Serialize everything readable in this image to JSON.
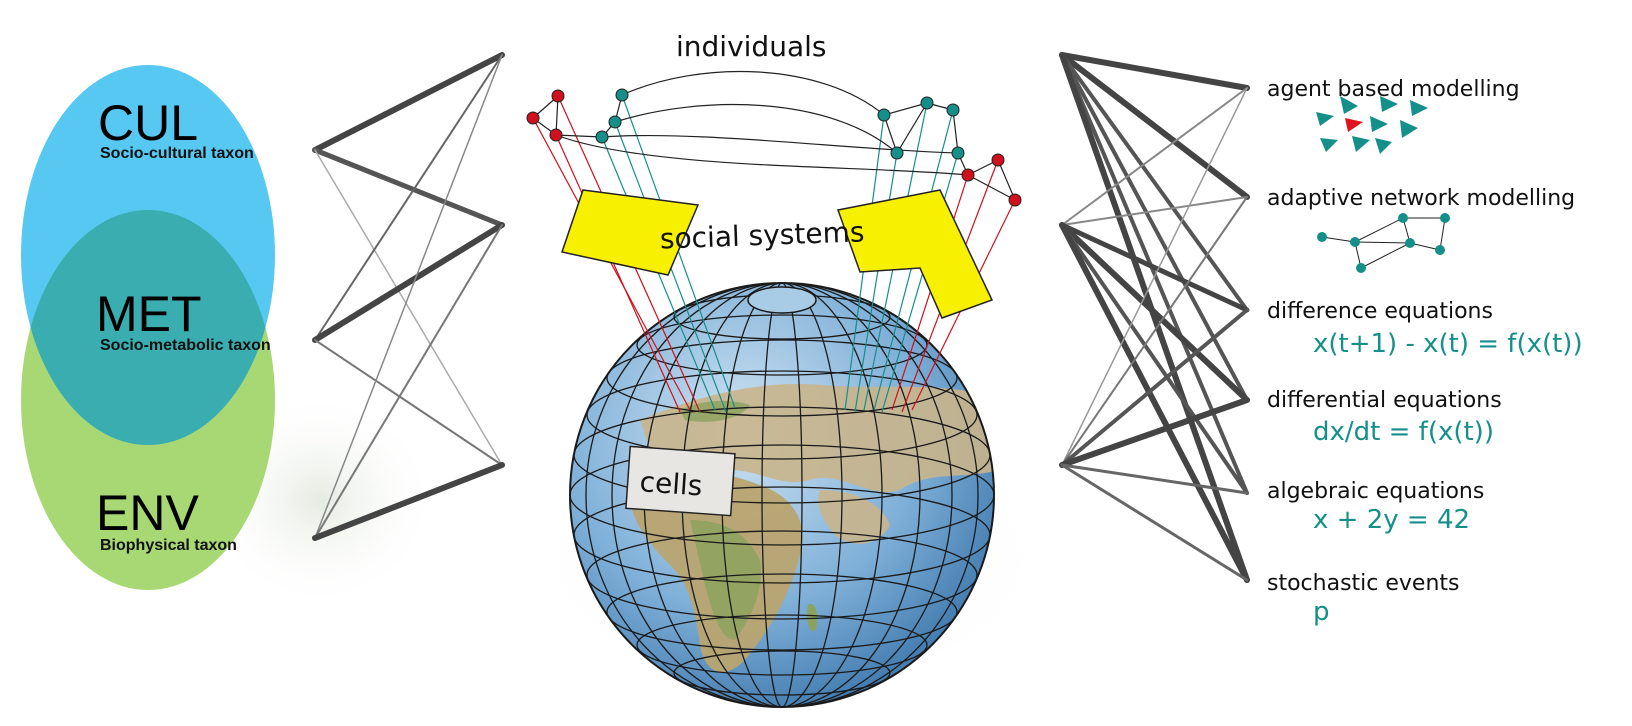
{
  "taxa": [
    {
      "code": "CUL",
      "label": "Socio-cultural taxon",
      "color": "#56c8f2"
    },
    {
      "code": "MET",
      "label": "Socio-metabolic taxon",
      "color": "#3aadb0"
    },
    {
      "code": "ENV",
      "label": "Biophysical taxon",
      "color": "#a8d873"
    }
  ],
  "scales": {
    "individuals": "individuals",
    "social_systems": "social systems",
    "cells": "cells"
  },
  "models": [
    {
      "label": "agent based modelling",
      "formula": ""
    },
    {
      "label": "adaptive network modelling",
      "formula": ""
    },
    {
      "label": "difference equations",
      "formula": "x(t+1) - x(t) = f(x(t))"
    },
    {
      "label": "differential equations",
      "formula": "dx/dt = f(x(t))"
    },
    {
      "label": "algebraic equations",
      "formula": "x + 2y = 42"
    },
    {
      "label": "stochastic events",
      "formula": "p"
    }
  ],
  "colors": {
    "teal": "#148f8a",
    "red_node": "#d0101c",
    "yellow_patch": "#f7f000",
    "ocean": "#7fb0d8",
    "land": "#c8b48a"
  }
}
